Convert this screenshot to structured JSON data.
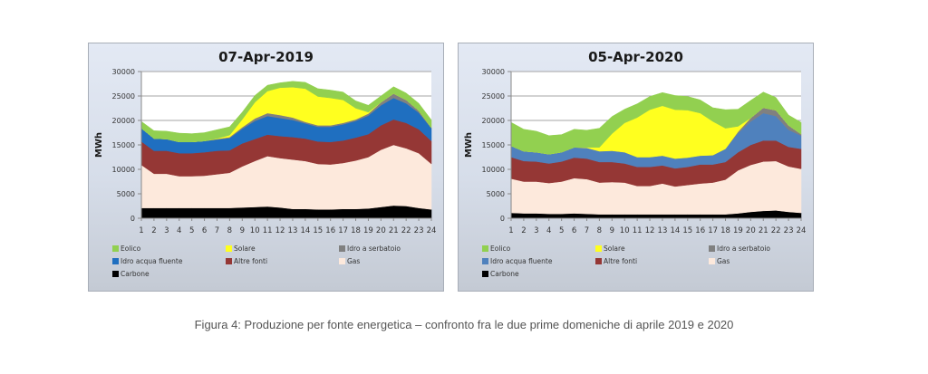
{
  "caption": "Figura 4: Produzione per fonte energetica – confronto fra le due prime domeniche di aprile 2019 e 2020",
  "chart_data": [
    {
      "type": "area",
      "stacked": true,
      "title": "07-Apr-2019",
      "xlabel": "",
      "ylabel": "MWh",
      "ylim": [
        0,
        30000
      ],
      "yticks": [
        0,
        5000,
        10000,
        15000,
        20000,
        25000,
        30000
      ],
      "x": [
        1,
        2,
        3,
        4,
        5,
        6,
        7,
        8,
        9,
        10,
        11,
        12,
        13,
        14,
        15,
        16,
        17,
        18,
        19,
        20,
        21,
        22,
        23,
        24
      ],
      "grid": "horizontal",
      "legend_position": "bottom",
      "series": [
        {
          "name": "Carbone",
          "color": "#000000",
          "values": [
            2100,
            2100,
            2100,
            2100,
            2100,
            2100,
            2100,
            2100,
            2200,
            2300,
            2400,
            2200,
            1900,
            1900,
            1800,
            1800,
            1900,
            1900,
            2000,
            2300,
            2600,
            2500,
            2100,
            1800
          ]
        },
        {
          "name": "Gas",
          "color": "#fde9dc",
          "values": [
            8800,
            7000,
            7000,
            6500,
            6500,
            6600,
            6900,
            7200,
            8400,
            9400,
            10300,
            10100,
            10100,
            9800,
            9300,
            9200,
            9400,
            9900,
            10500,
            11700,
            12400,
            11800,
            11200,
            9300
          ]
        },
        {
          "name": "Altre fonti",
          "color": "#953735",
          "values": [
            4800,
            4700,
            4700,
            4700,
            4700,
            4800,
            4800,
            4600,
            4700,
            4500,
            4400,
            4500,
            4600,
            4600,
            4600,
            4600,
            4600,
            4700,
            4700,
            5000,
            5200,
            5200,
            4900,
            4700
          ]
        },
        {
          "name": "Idro acqua fluente",
          "color": "#1f6fc0",
          "values": [
            2700,
            2500,
            2400,
            2300,
            2300,
            2300,
            2300,
            2500,
            3000,
            3700,
            3800,
            3700,
            3500,
            3100,
            3000,
            3100,
            3300,
            3400,
            3800,
            4100,
            4400,
            4000,
            3400,
            2600
          ]
        },
        {
          "name": "Idro a serbatoio",
          "color": "#808080",
          "values": [
            0,
            0,
            0,
            0,
            0,
            0,
            100,
            200,
            300,
            500,
            600,
            600,
            500,
            300,
            300,
            300,
            300,
            300,
            400,
            600,
            900,
            700,
            400,
            100
          ]
        },
        {
          "name": "Solare",
          "color": "#ffff1f",
          "values": [
            0,
            0,
            0,
            0,
            0,
            0,
            100,
            400,
            1600,
            3300,
            4500,
            5600,
            6200,
            6800,
            5900,
            5600,
            4700,
            2300,
            300,
            0,
            0,
            0,
            0,
            0
          ]
        },
        {
          "name": "Eolico",
          "color": "#92d050",
          "values": [
            1400,
            1600,
            1600,
            1800,
            1700,
            1700,
            1800,
            1700,
            1500,
            1400,
            1200,
            1000,
            1200,
            1300,
            1600,
            1600,
            1600,
            1500,
            1400,
            1300,
            1400,
            1400,
            1500,
            1600
          ]
        }
      ]
    },
    {
      "type": "area",
      "stacked": true,
      "title": "05-Apr-2020",
      "xlabel": "",
      "ylabel": "MWh",
      "ylim": [
        0,
        30000
      ],
      "yticks": [
        0,
        5000,
        10000,
        15000,
        20000,
        25000,
        30000
      ],
      "x": [
        1,
        2,
        3,
        4,
        5,
        6,
        7,
        8,
        9,
        10,
        11,
        12,
        13,
        14,
        15,
        16,
        17,
        18,
        19,
        20,
        21,
        22,
        23,
        24
      ],
      "grid": "horizontal",
      "legend_position": "bottom",
      "series": [
        {
          "name": "Carbone",
          "color": "#000000",
          "values": [
            1100,
            1000,
            1000,
            900,
            900,
            1000,
            900,
            800,
            800,
            800,
            800,
            800,
            800,
            800,
            800,
            800,
            800,
            800,
            1000,
            1300,
            1500,
            1600,
            1300,
            1100
          ]
        },
        {
          "name": "Gas",
          "color": "#fde9dc",
          "values": [
            7000,
            6500,
            6500,
            6300,
            6600,
            7200,
            7100,
            6500,
            6600,
            6500,
            5800,
            5800,
            6300,
            5700,
            6000,
            6300,
            6500,
            7100,
            8800,
            9600,
            10100,
            10100,
            9300,
            9000
          ]
        },
        {
          "name": "Altre fonti",
          "color": "#953735",
          "values": [
            4400,
            4200,
            4100,
            4000,
            4100,
            4200,
            4200,
            4200,
            4100,
            3900,
            3900,
            3900,
            3700,
            3700,
            3700,
            3900,
            3700,
            3600,
            3700,
            4100,
            4300,
            4200,
            4000,
            4100
          ]
        },
        {
          "name": "Idro acqua fluente",
          "color": "#4f81bd",
          "values": [
            2300,
            2000,
            1900,
            1900,
            1900,
            2100,
            2200,
            2200,
            2300,
            2300,
            2000,
            2000,
            2000,
            2000,
            1900,
            1800,
            1900,
            2700,
            3900,
            4800,
            5600,
            5000,
            3500,
            2700
          ]
        },
        {
          "name": "Idro a serbatoio",
          "color": "#808080",
          "values": [
            0,
            0,
            0,
            0,
            0,
            0,
            0,
            0,
            0,
            0,
            0,
            0,
            0,
            0,
            0,
            0,
            0,
            0,
            300,
            700,
            1100,
            1200,
            900,
            300
          ]
        },
        {
          "name": "Solare",
          "color": "#ffff1f",
          "values": [
            0,
            0,
            0,
            0,
            0,
            0,
            100,
            800,
            3500,
            6000,
            8100,
            9700,
            10200,
            10000,
            9700,
            8700,
            6900,
            4200,
            1100,
            0,
            0,
            0,
            0,
            0
          ]
        },
        {
          "name": "Eolico",
          "color": "#92d050",
          "values": [
            4800,
            4500,
            4300,
            3800,
            3600,
            3700,
            3500,
            3900,
            3500,
            2800,
            2800,
            2700,
            2700,
            2900,
            2800,
            2700,
            2800,
            3800,
            3500,
            3600,
            3200,
            2600,
            2100,
            2400
          ]
        }
      ]
    }
  ]
}
